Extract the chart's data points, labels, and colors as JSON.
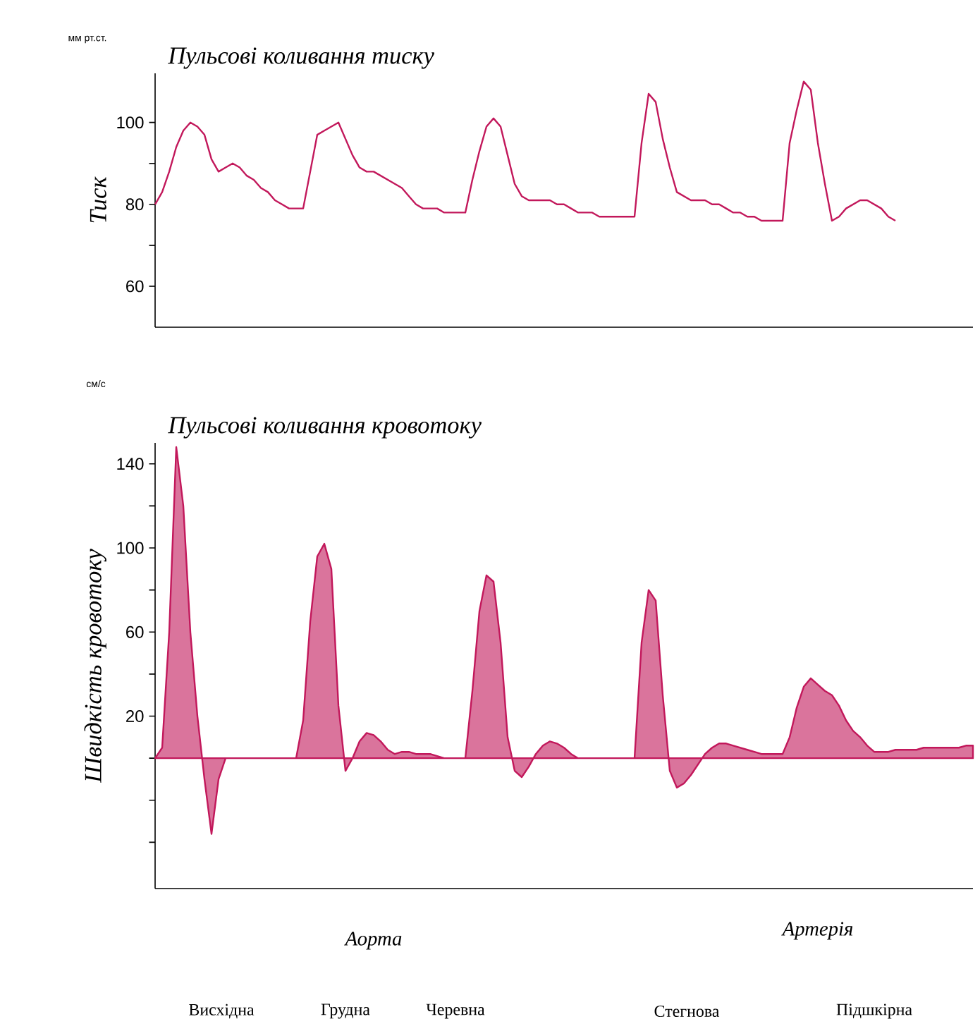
{
  "chart_data": [
    {
      "type": "line",
      "title": "Пульсові коливання тиску",
      "ylabel": "Тиск",
      "annotations": [
        "мм рт.ст."
      ],
      "ylim": [
        50,
        112
      ],
      "yticks": [
        60,
        {
          "value": 70,
          "label": null
        },
        80,
        {
          "value": 90,
          "label": null
        },
        100
      ],
      "tick_labels": "y",
      "categories": [
        null,
        null,
        null,
        null,
        null,
        null,
        null,
        null,
        null,
        null,
        null,
        null,
        null,
        null,
        null,
        null,
        null,
        null,
        null,
        null,
        null,
        null,
        null,
        null,
        null,
        null,
        null,
        null,
        null,
        null,
        null,
        null,
        null,
        null,
        null,
        null,
        null,
        null,
        null,
        null,
        null,
        null,
        null,
        null,
        null,
        null,
        null,
        null,
        null,
        null,
        null,
        null,
        null,
        null,
        null,
        null,
        null,
        null,
        null,
        null,
        null,
        null,
        null,
        null,
        null,
        null,
        null,
        null,
        null,
        null,
        null,
        null,
        null,
        null,
        null,
        null,
        null,
        null,
        null,
        null,
        null,
        null,
        null,
        null,
        null,
        null,
        null,
        null,
        null,
        null,
        null,
        null,
        null,
        null,
        null,
        null,
        null,
        null,
        null,
        null,
        null,
        null,
        null,
        null,
        null,
        null,
        null,
        null,
        null,
        null,
        null,
        null,
        null,
        null,
        null,
        null,
        null
      ],
      "series": [
        {
          "color": "#c2185b",
          "values": [
            80,
            83,
            88,
            94,
            98,
            100,
            99,
            97,
            91,
            88,
            89,
            90,
            89,
            87,
            86,
            84,
            83,
            81,
            80,
            79,
            79,
            79,
            88,
            97,
            98,
            99,
            100,
            96,
            92,
            89,
            88,
            88,
            87,
            86,
            85,
            84,
            82,
            80,
            79,
            79,
            79,
            78,
            78,
            78,
            78,
            86,
            93,
            99,
            101,
            99,
            92,
            85,
            82,
            81,
            81,
            81,
            81,
            80,
            80,
            79,
            78,
            78,
            78,
            77,
            77,
            77,
            77,
            77,
            77,
            95,
            107,
            105,
            96,
            89,
            83,
            82,
            81,
            81,
            81,
            80,
            80,
            79,
            78,
            78,
            77,
            77,
            76,
            76,
            76,
            76,
            95,
            103,
            110,
            108,
            95,
            85,
            76,
            77,
            79,
            80,
            81,
            81,
            80,
            79,
            77,
            76,
            null,
            null,
            null,
            null,
            null,
            null,
            null,
            null,
            null,
            null,
            null
          ]
        }
      ]
    },
    {
      "type": "area",
      "title": "Пульсові коливання кровотоку",
      "ylabel": "Швидкість кровотоку",
      "annotations": [
        "см/с",
        "Аорта",
        "Артерія",
        "Висхідна",
        "Грудна",
        "Черевна",
        "Стегнова",
        "Підшкірна"
      ],
      "ylim": [
        -62,
        150
      ],
      "yticks": [
        {
          "value": -40,
          "label": null
        },
        {
          "value": -20,
          "label": null
        },
        {
          "value": 0,
          "label": null
        },
        20,
        {
          "value": 40,
          "label": null
        },
        60,
        {
          "value": 80,
          "label": null
        },
        100,
        {
          "value": 120,
          "label": null
        },
        140
      ],
      "tick_labels": "y",
      "categories": [
        null,
        null,
        null,
        null,
        null,
        null,
        null,
        null,
        null,
        null,
        null,
        null,
        null,
        null,
        null,
        null,
        null,
        null,
        null,
        null,
        null,
        null,
        null,
        null,
        null,
        null,
        null,
        null,
        null,
        null,
        null,
        null,
        null,
        null,
        null,
        null,
        null,
        null,
        null,
        null,
        null,
        null,
        null,
        null,
        null,
        null,
        null,
        null,
        null,
        null,
        null,
        null,
        null,
        null,
        null,
        null,
        null,
        null,
        null,
        null,
        null,
        null,
        null,
        null,
        null,
        null,
        null,
        null,
        null,
        null,
        null,
        null,
        null,
        null,
        null,
        null,
        null,
        null,
        null,
        null,
        null,
        null,
        null,
        null,
        null,
        null,
        null,
        null,
        null,
        null,
        null,
        null,
        null,
        null,
        null,
        null,
        null,
        null,
        null,
        null,
        null,
        null,
        null,
        null,
        null,
        null,
        null,
        null,
        null,
        null,
        null,
        null,
        null,
        null,
        null,
        null,
        null
      ],
      "series": [
        {
          "color": "#c2185b",
          "values": [
            0,
            5,
            60,
            148,
            120,
            60,
            20,
            -10,
            -36,
            -10,
            0,
            0,
            0,
            0,
            0,
            0,
            0,
            0,
            0,
            0,
            0,
            18,
            65,
            96,
            102,
            90,
            25,
            -6,
            0,
            8,
            12,
            11,
            8,
            4,
            2,
            3,
            3,
            2,
            2,
            2,
            1,
            0,
            0,
            0,
            0,
            32,
            70,
            87,
            84,
            55,
            10,
            -6,
            -9,
            -4,
            2,
            6,
            8,
            7,
            5,
            2,
            0,
            0,
            0,
            0,
            0,
            0,
            0,
            0,
            0,
            55,
            80,
            75,
            30,
            -6,
            -14,
            -12,
            -8,
            -3,
            2,
            5,
            7,
            7,
            6,
            5,
            4,
            3,
            2,
            2,
            2,
            2,
            10,
            24,
            34,
            38,
            35,
            32,
            30,
            25,
            18,
            13,
            10,
            6,
            3,
            3,
            3,
            4,
            4,
            4,
            4,
            5,
            5,
            5,
            5,
            5,
            5,
            6,
            6
          ]
        }
      ]
    }
  ]
}
